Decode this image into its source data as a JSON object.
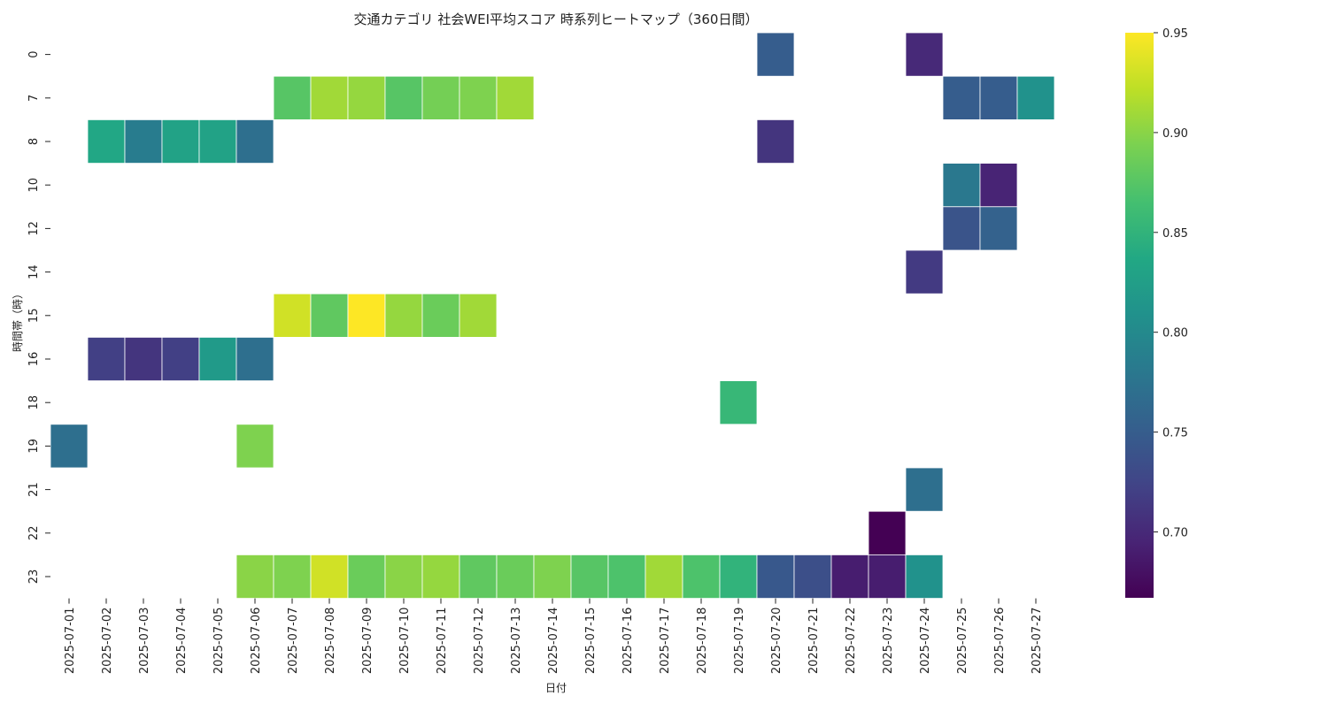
{
  "chart_data": {
    "type": "heatmap",
    "title": "交通カテゴリ 社会WEI平均スコア 時系列ヒートマップ（360日間）",
    "xlabel": "日付",
    "ylabel": "時間帯（時）",
    "colormap": "viridis",
    "colorbar": {
      "min": 0.667,
      "max": 0.95,
      "ticks": [
        0.7,
        0.75,
        0.8,
        0.85,
        0.9,
        0.95
      ],
      "tick_labels": [
        "0.70",
        "0.75",
        "0.80",
        "0.85",
        "0.90",
        "0.95"
      ]
    },
    "x_categories": [
      "2025-07-01",
      "2025-07-02",
      "2025-07-03",
      "2025-07-04",
      "2025-07-05",
      "2025-07-06",
      "2025-07-07",
      "2025-07-08",
      "2025-07-09",
      "2025-07-10",
      "2025-07-11",
      "2025-07-12",
      "2025-07-13",
      "2025-07-14",
      "2025-07-15",
      "2025-07-16",
      "2025-07-17",
      "2025-07-18",
      "2025-07-19",
      "2025-07-20",
      "2025-07-21",
      "2025-07-22",
      "2025-07-23",
      "2025-07-24",
      "2025-07-25",
      "2025-07-26",
      "2025-07-27"
    ],
    "y_categories": [
      "0",
      "7",
      "8",
      "10",
      "12",
      "14",
      "15",
      "16",
      "18",
      "19",
      "21",
      "22",
      "23"
    ],
    "values": [
      [
        null,
        null,
        null,
        null,
        null,
        null,
        null,
        null,
        null,
        null,
        null,
        null,
        null,
        null,
        null,
        null,
        null,
        null,
        null,
        0.75,
        null,
        null,
        null,
        0.7,
        null,
        null,
        null
      ],
      [
        null,
        null,
        null,
        null,
        null,
        null,
        0.875,
        0.91,
        0.905,
        0.875,
        0.89,
        0.895,
        0.91,
        null,
        null,
        null,
        null,
        null,
        null,
        null,
        null,
        null,
        null,
        null,
        0.75,
        0.75,
        0.81
      ],
      [
        null,
        0.835,
        0.785,
        0.83,
        0.83,
        0.77,
        null,
        null,
        null,
        null,
        null,
        null,
        null,
        null,
        null,
        null,
        null,
        null,
        null,
        0.71,
        null,
        null,
        null,
        null,
        null,
        null,
        null
      ],
      [
        null,
        null,
        null,
        null,
        null,
        null,
        null,
        null,
        null,
        null,
        null,
        null,
        null,
        null,
        null,
        null,
        null,
        null,
        null,
        null,
        null,
        null,
        null,
        null,
        0.78,
        0.695,
        null
      ],
      [
        null,
        null,
        null,
        null,
        null,
        null,
        null,
        null,
        null,
        null,
        null,
        null,
        null,
        null,
        null,
        null,
        null,
        null,
        null,
        null,
        null,
        null,
        null,
        null,
        0.74,
        0.755,
        null
      ],
      [
        null,
        null,
        null,
        null,
        null,
        null,
        null,
        null,
        null,
        null,
        null,
        null,
        null,
        null,
        null,
        null,
        null,
        null,
        null,
        null,
        null,
        null,
        null,
        0.715,
        null,
        null,
        null
      ],
      [
        null,
        null,
        null,
        null,
        null,
        null,
        0.93,
        0.88,
        0.95,
        0.905,
        0.885,
        0.91,
        null,
        null,
        null,
        null,
        null,
        null,
        null,
        null,
        null,
        null,
        null,
        null,
        null,
        null,
        null
      ],
      [
        null,
        0.72,
        0.71,
        0.72,
        0.82,
        0.77,
        null,
        null,
        null,
        null,
        null,
        null,
        null,
        null,
        null,
        null,
        null,
        null,
        null,
        null,
        null,
        null,
        null,
        null,
        null,
        null,
        null
      ],
      [
        null,
        null,
        null,
        null,
        null,
        null,
        null,
        null,
        null,
        null,
        null,
        null,
        null,
        null,
        null,
        null,
        null,
        null,
        0.855,
        null,
        null,
        null,
        null,
        null,
        null,
        null,
        null
      ],
      [
        0.77,
        null,
        null,
        null,
        null,
        0.895,
        null,
        null,
        null,
        null,
        null,
        null,
        null,
        null,
        null,
        null,
        null,
        null,
        null,
        null,
        null,
        null,
        null,
        null,
        null,
        null,
        null
      ],
      [
        null,
        null,
        null,
        null,
        null,
        null,
        null,
        null,
        null,
        null,
        null,
        null,
        null,
        null,
        null,
        null,
        null,
        null,
        null,
        null,
        null,
        null,
        null,
        0.77,
        null,
        null,
        null
      ],
      [
        null,
        null,
        null,
        null,
        null,
        null,
        null,
        null,
        null,
        null,
        null,
        null,
        null,
        null,
        null,
        null,
        null,
        null,
        null,
        null,
        null,
        null,
        0.667,
        null,
        null,
        null,
        null
      ],
      [
        null,
        null,
        null,
        null,
        null,
        0.9,
        0.895,
        0.93,
        0.885,
        0.9,
        0.905,
        0.88,
        0.885,
        0.895,
        0.875,
        0.87,
        0.91,
        0.87,
        0.85,
        0.745,
        0.735,
        0.69,
        0.69,
        0.81,
        null,
        null,
        null
      ]
    ]
  }
}
